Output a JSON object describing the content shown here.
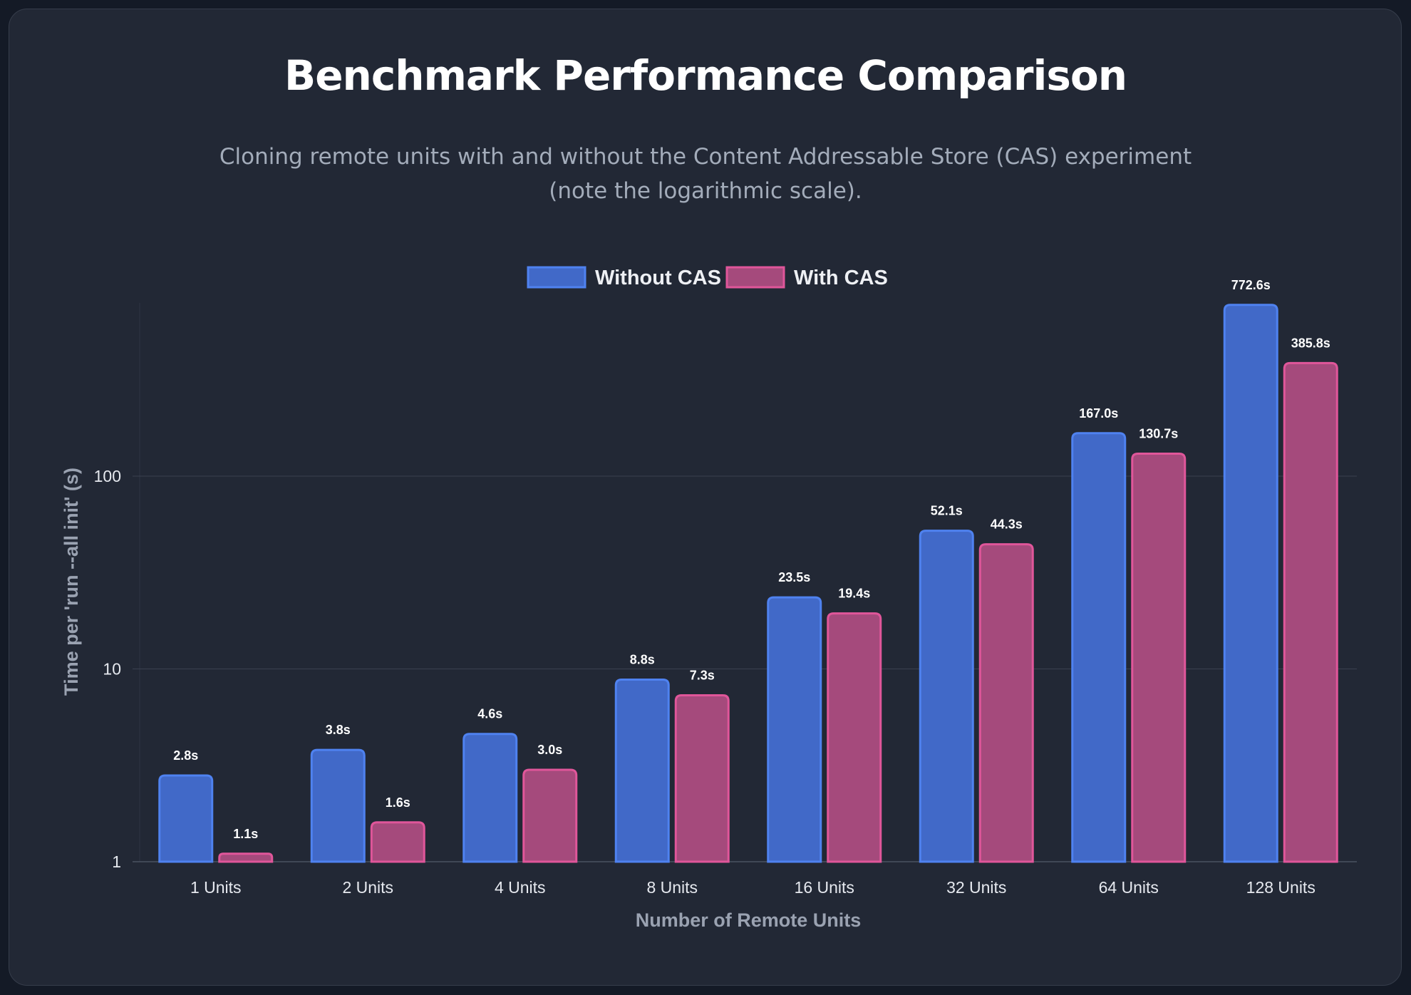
{
  "title": "Benchmark Performance Comparison",
  "subtitle_line1": "Cloning remote units with and without the Content Addressable Store (CAS) experiment",
  "subtitle_line2": "(note the logarithmic scale).",
  "chart_data": {
    "type": "bar",
    "yscale": "log",
    "categories": [
      "1 Units",
      "2 Units",
      "4 Units",
      "8 Units",
      "16 Units",
      "32 Units",
      "64 Units",
      "128 Units"
    ],
    "series": [
      {
        "name": "Without CAS",
        "values": [
          2.8,
          3.8,
          4.6,
          8.8,
          23.5,
          52.1,
          167.0,
          772.6
        ],
        "labels": [
          "2.8s",
          "3.8s",
          "4.6s",
          "8.8s",
          "23.5s",
          "52.1s",
          "167.0s",
          "772.6s"
        ],
        "color": "#4169c8",
        "border": "#4f82f0"
      },
      {
        "name": "With CAS",
        "values": [
          1.1,
          1.6,
          3.0,
          7.3,
          19.4,
          44.3,
          130.7,
          385.8
        ],
        "labels": [
          "1.1s",
          "1.6s",
          "3.0s",
          "7.3s",
          "19.4s",
          "44.3s",
          "130.7s",
          "385.8s"
        ],
        "color": "#a54a7c",
        "border": "#e0569a"
      }
    ],
    "yticks": [
      1,
      10,
      100
    ],
    "ytick_labels": [
      "1",
      "10",
      "100"
    ],
    "xlabel": "Number of Remote Units",
    "ylabel": "Time per 'run --all init' (s)",
    "legend_position": "top-center",
    "grid": true
  }
}
